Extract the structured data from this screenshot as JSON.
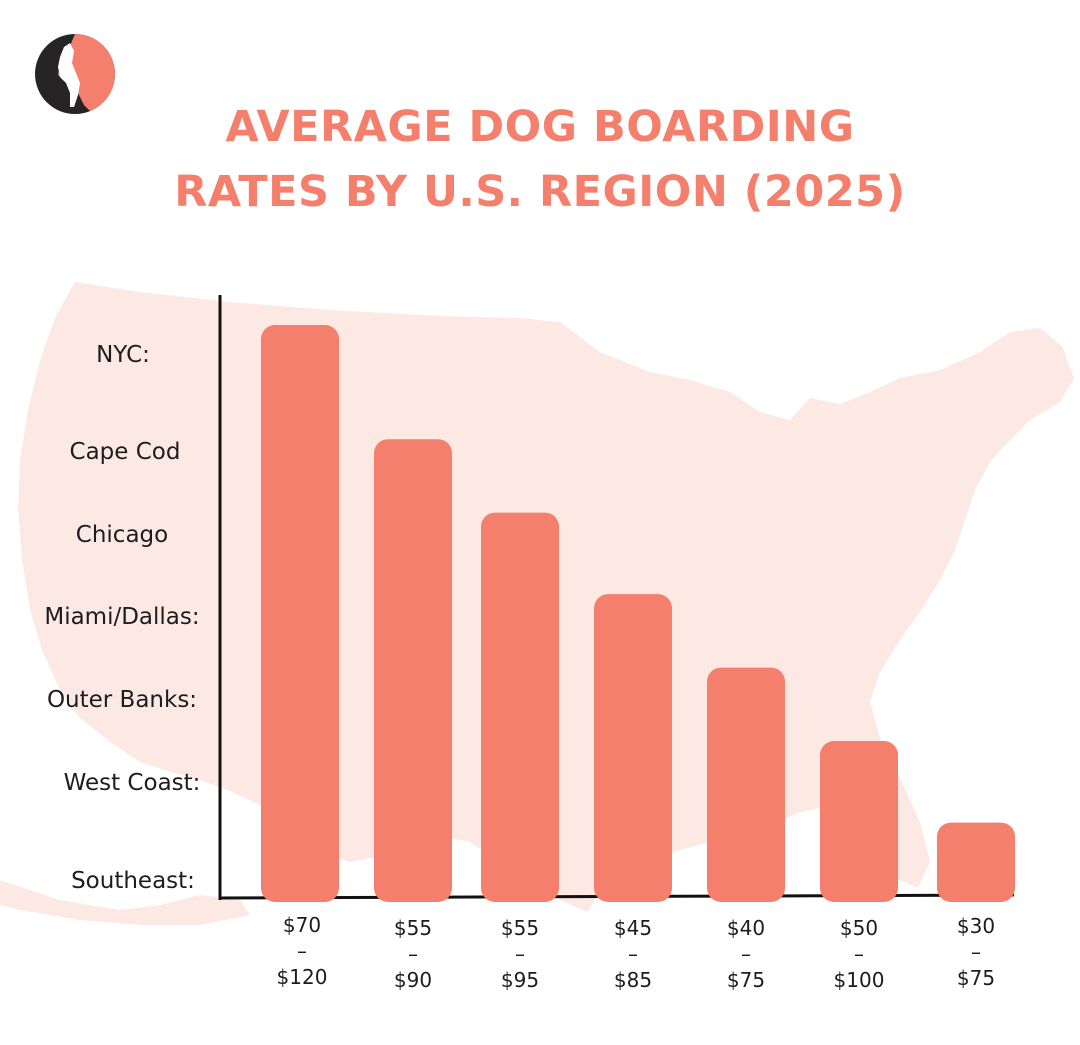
{
  "title_line1": "AVERAGE DOG BOARDING",
  "title_line2": "RATES BY U.S. REGION (2025)",
  "colors": {
    "accent": "#f47f6c",
    "map": "#fde9e4",
    "dark": "#262424",
    "axis": "#111111"
  },
  "logo_icon": "dog-head-logo-icon",
  "background_icon": "usa-map-icon",
  "chart_data": {
    "type": "bar",
    "title": "AVERAGE DOG BOARDING RATES BY U.S. REGION (2025)",
    "categories": [
      "NYC:",
      "Cape Cod",
      "Chicago",
      "Miami/Dallas:",
      "Outer Banks:",
      "West Coast:",
      "Southeast:"
    ],
    "values": [
      7,
      5.6,
      4.7,
      3.7,
      2.8,
      1.9,
      0.9
    ],
    "value_labels": [
      [
        "$70",
        "–",
        "$120"
      ],
      [
        "$55",
        "–",
        "$90"
      ],
      [
        "$55",
        "–",
        "$95"
      ],
      [
        "$45",
        "–",
        "$85"
      ],
      [
        "$40",
        "–",
        "$75"
      ],
      [
        "$50",
        "–",
        "$100"
      ],
      [
        "$30",
        "–",
        "$75"
      ]
    ],
    "ylim": [
      0,
      7.5
    ],
    "grid": false,
    "legend": "none"
  }
}
